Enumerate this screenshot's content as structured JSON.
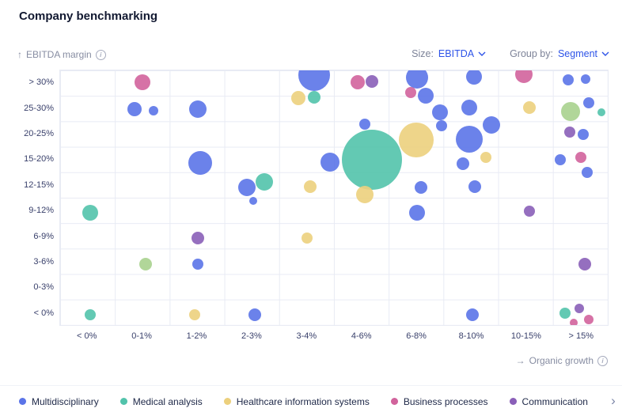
{
  "title": "Company benchmarking",
  "controls": {
    "size_label": "Size:",
    "size_value": "EBITDA",
    "group_label": "Group by:",
    "group_value": "Segment"
  },
  "axes": {
    "y_title": "EBITDA margin",
    "x_title": "Organic growth",
    "y_arrow": "↑",
    "x_arrow": "→",
    "info_glyph": "i"
  },
  "colors": {
    "multidisciplinary": "#5b74e8",
    "medical_analysis": "#52c3ab",
    "healthcare_information_systems": "#ecd07d",
    "business_processes": "#d1639c",
    "communication": "#8a5fb8",
    "other": "#a9d18e",
    "accent_blue": "#2d53e8"
  },
  "legend": {
    "items": [
      {
        "label": "Multidisciplinary",
        "segment": "multidisciplinary"
      },
      {
        "label": "Medical analysis",
        "segment": "medical_analysis"
      },
      {
        "label": "Healthcare information systems",
        "segment": "healthcare_information_systems"
      },
      {
        "label": "Business processes",
        "segment": "business_processes"
      },
      {
        "label": "Communication",
        "segment": "communication"
      }
    ],
    "more_arrow": "›"
  },
  "chart_data": {
    "type": "scatter",
    "title": "Company benchmarking",
    "xlabel": "Organic growth",
    "ylabel": "EBITDA margin",
    "x_categories": [
      "< 0%",
      "0-1%",
      "1-2%",
      "2-3%",
      "3-4%",
      "4-6%",
      "6-8%",
      "8-10%",
      "10-15%",
      "> 15%"
    ],
    "y_categories": [
      "> 30%",
      "25-30%",
      "20-25%",
      "15-20%",
      "12-15%",
      "9-12%",
      "6-9%",
      "3-6%",
      "0-3%",
      "< 0%"
    ],
    "grid": true,
    "legend_position": "bottom",
    "size_metric": "EBITDA",
    "group_by": "Segment",
    "bubbles": [
      {
        "x": "0-1%",
        "y": "> 30%",
        "dx": 0.5,
        "dy": 0.45,
        "r": 10,
        "segment": "business_processes"
      },
      {
        "x": "3-4%",
        "y": "> 30%",
        "dx": 0.63,
        "dy": 0.2,
        "r": 20,
        "segment": "multidisciplinary"
      },
      {
        "x": "3-4%",
        "y": "25-30%",
        "dx": 0.33,
        "dy": 0.08,
        "r": 9,
        "segment": "healthcare_information_systems"
      },
      {
        "x": "3-4%",
        "y": "25-30%",
        "dx": 0.62,
        "dy": 0.06,
        "r": 8,
        "segment": "medical_analysis"
      },
      {
        "x": "4-6%",
        "y": "> 30%",
        "dx": 0.42,
        "dy": 0.47,
        "r": 9,
        "segment": "business_processes"
      },
      {
        "x": "4-6%",
        "y": "> 30%",
        "dx": 0.68,
        "dy": 0.44,
        "r": 8,
        "segment": "communication"
      },
      {
        "x": "6-8%",
        "y": "> 30%",
        "dx": 0.5,
        "dy": 0.28,
        "r": 14,
        "segment": "multidisciplinary"
      },
      {
        "x": "6-8%",
        "y": "> 30%",
        "dx": 0.38,
        "dy": 0.85,
        "r": 7,
        "segment": "business_processes"
      },
      {
        "x": "8-10%",
        "y": "> 30%",
        "dx": 0.53,
        "dy": 0.25,
        "r": 10,
        "segment": "multidisciplinary"
      },
      {
        "x": "10-15%",
        "y": "> 30%",
        "dx": 0.45,
        "dy": 0.15,
        "r": 11,
        "segment": "business_processes"
      },
      {
        "x": "> 15%",
        "y": "> 30%",
        "dx": 0.25,
        "dy": 0.38,
        "r": 7,
        "segment": "multidisciplinary"
      },
      {
        "x": "> 15%",
        "y": "> 30%",
        "dx": 0.57,
        "dy": 0.33,
        "r": 6,
        "segment": "multidisciplinary"
      },
      {
        "x": "0-1%",
        "y": "25-30%",
        "dx": 0.35,
        "dy": 0.52,
        "r": 9,
        "segment": "multidisciplinary"
      },
      {
        "x": "0-1%",
        "y": "25-30%",
        "dx": 0.7,
        "dy": 0.58,
        "r": 6,
        "segment": "multidisciplinary"
      },
      {
        "x": "1-2%",
        "y": "25-30%",
        "dx": 0.5,
        "dy": 0.52,
        "r": 11,
        "segment": "multidisciplinary"
      },
      {
        "x": "6-8%",
        "y": "25-30%",
        "dx": 0.65,
        "dy": 0.0,
        "r": 10,
        "segment": "multidisciplinary"
      },
      {
        "x": "6-8%",
        "y": "25-30%",
        "dx": 0.92,
        "dy": 0.63,
        "r": 10,
        "segment": "multidisciplinary"
      },
      {
        "x": "8-10%",
        "y": "25-30%",
        "dx": 0.45,
        "dy": 0.45,
        "r": 10,
        "segment": "multidisciplinary"
      },
      {
        "x": "10-15%",
        "y": "25-30%",
        "dx": 0.55,
        "dy": 0.45,
        "r": 8,
        "segment": "healthcare_information_systems"
      },
      {
        "x": "> 15%",
        "y": "25-30%",
        "dx": 0.3,
        "dy": 0.62,
        "r": 12,
        "segment": "other"
      },
      {
        "x": "> 15%",
        "y": "25-30%",
        "dx": 0.62,
        "dy": 0.25,
        "r": 7,
        "segment": "multidisciplinary"
      },
      {
        "x": "> 15%",
        "y": "25-30%",
        "dx": 0.85,
        "dy": 0.65,
        "r": 5,
        "segment": "medical_analysis"
      },
      {
        "x": "4-6%",
        "y": "20-25%",
        "dx": 0.55,
        "dy": 0.1,
        "r": 7,
        "segment": "multidisciplinary"
      },
      {
        "x": "6-8%",
        "y": "20-25%",
        "dx": 0.48,
        "dy": 0.72,
        "r": 22,
        "segment": "healthcare_information_systems"
      },
      {
        "x": "6-8%",
        "y": "20-25%",
        "dx": 0.95,
        "dy": 0.15,
        "r": 7,
        "segment": "multidisciplinary"
      },
      {
        "x": "8-10%",
        "y": "20-25%",
        "dx": 0.45,
        "dy": 0.68,
        "r": 17,
        "segment": "multidisciplinary"
      },
      {
        "x": "8-10%",
        "y": "20-25%",
        "dx": 0.85,
        "dy": 0.12,
        "r": 11,
        "segment": "multidisciplinary"
      },
      {
        "x": "> 15%",
        "y": "20-25%",
        "dx": 0.28,
        "dy": 0.4,
        "r": 7,
        "segment": "communication"
      },
      {
        "x": "> 15%",
        "y": "20-25%",
        "dx": 0.52,
        "dy": 0.5,
        "r": 7,
        "segment": "multidisciplinary"
      },
      {
        "x": "1-2%",
        "y": "15-20%",
        "dx": 0.55,
        "dy": 0.6,
        "r": 15,
        "segment": "multidisciplinary"
      },
      {
        "x": "3-4%",
        "y": "15-20%",
        "dx": 0.92,
        "dy": 0.58,
        "r": 12,
        "segment": "multidisciplinary"
      },
      {
        "x": "4-6%",
        "y": "15-20%",
        "dx": 0.68,
        "dy": 0.5,
        "r": 38,
        "segment": "medical_analysis"
      },
      {
        "x": "8-10%",
        "y": "15-20%",
        "dx": 0.33,
        "dy": 0.65,
        "r": 8,
        "segment": "multidisciplinary"
      },
      {
        "x": "8-10%",
        "y": "15-20%",
        "dx": 0.75,
        "dy": 0.4,
        "r": 7,
        "segment": "healthcare_information_systems"
      },
      {
        "x": "> 15%",
        "y": "15-20%",
        "dx": 0.1,
        "dy": 0.5,
        "r": 7,
        "segment": "multidisciplinary"
      },
      {
        "x": "> 15%",
        "y": "15-20%",
        "dx": 0.48,
        "dy": 0.38,
        "r": 7,
        "segment": "business_processes"
      },
      {
        "x": "> 15%",
        "y": "15-20%",
        "dx": 0.6,
        "dy": 0.98,
        "r": 7,
        "segment": "multidisciplinary"
      },
      {
        "x": "2-3%",
        "y": "12-15%",
        "dx": 0.4,
        "dy": 0.58,
        "r": 11,
        "segment": "multidisciplinary"
      },
      {
        "x": "2-3%",
        "y": "12-15%",
        "dx": 0.72,
        "dy": 0.35,
        "r": 11,
        "segment": "medical_analysis"
      },
      {
        "x": "2-3%",
        "y": "9-12%",
        "dx": 0.52,
        "dy": 0.1,
        "r": 5,
        "segment": "multidisciplinary"
      },
      {
        "x": "3-4%",
        "y": "12-15%",
        "dx": 0.55,
        "dy": 0.55,
        "r": 8,
        "segment": "healthcare_information_systems"
      },
      {
        "x": "4-6%",
        "y": "12-15%",
        "dx": 0.55,
        "dy": 0.85,
        "r": 11,
        "segment": "healthcare_information_systems"
      },
      {
        "x": "6-8%",
        "y": "12-15%",
        "dx": 0.57,
        "dy": 0.58,
        "r": 8,
        "segment": "multidisciplinary"
      },
      {
        "x": "8-10%",
        "y": "12-15%",
        "dx": 0.55,
        "dy": 0.55,
        "r": 8,
        "segment": "multidisciplinary"
      },
      {
        "x": "< 0%",
        "y": "9-12%",
        "dx": 0.55,
        "dy": 0.55,
        "r": 10,
        "segment": "medical_analysis"
      },
      {
        "x": "6-8%",
        "y": "9-12%",
        "dx": 0.5,
        "dy": 0.55,
        "r": 10,
        "segment": "multidisciplinary"
      },
      {
        "x": "10-15%",
        "y": "9-12%",
        "dx": 0.55,
        "dy": 0.5,
        "r": 7,
        "segment": "communication"
      },
      {
        "x": "1-2%",
        "y": "6-9%",
        "dx": 0.5,
        "dy": 0.55,
        "r": 8,
        "segment": "communication"
      },
      {
        "x": "3-4%",
        "y": "6-9%",
        "dx": 0.5,
        "dy": 0.55,
        "r": 7,
        "segment": "healthcare_information_systems"
      },
      {
        "x": "0-1%",
        "y": "3-6%",
        "dx": 0.55,
        "dy": 0.55,
        "r": 8,
        "segment": "other"
      },
      {
        "x": "1-2%",
        "y": "3-6%",
        "dx": 0.5,
        "dy": 0.55,
        "r": 7,
        "segment": "multidisciplinary"
      },
      {
        "x": "> 15%",
        "y": "3-6%",
        "dx": 0.55,
        "dy": 0.55,
        "r": 8,
        "segment": "communication"
      },
      {
        "x": "< 0%",
        "y": "< 0%",
        "dx": 0.55,
        "dy": 0.55,
        "r": 7,
        "segment": "medical_analysis"
      },
      {
        "x": "1-2%",
        "y": "< 0%",
        "dx": 0.45,
        "dy": 0.55,
        "r": 7,
        "segment": "healthcare_information_systems"
      },
      {
        "x": "2-3%",
        "y": "< 0%",
        "dx": 0.55,
        "dy": 0.55,
        "r": 8,
        "segment": "multidisciplinary"
      },
      {
        "x": "8-10%",
        "y": "< 0%",
        "dx": 0.5,
        "dy": 0.55,
        "r": 8,
        "segment": "multidisciplinary"
      },
      {
        "x": "> 15%",
        "y": "< 0%",
        "dx": 0.2,
        "dy": 0.48,
        "r": 7,
        "segment": "medical_analysis"
      },
      {
        "x": "> 15%",
        "y": "< 0%",
        "dx": 0.45,
        "dy": 0.3,
        "r": 6,
        "segment": "communication"
      },
      {
        "x": "> 15%",
        "y": "< 0%",
        "dx": 0.35,
        "dy": 0.85,
        "r": 5,
        "segment": "business_processes"
      },
      {
        "x": "> 15%",
        "y": "< 0%",
        "dx": 0.62,
        "dy": 0.72,
        "r": 6,
        "segment": "business_processes"
      }
    ]
  }
}
